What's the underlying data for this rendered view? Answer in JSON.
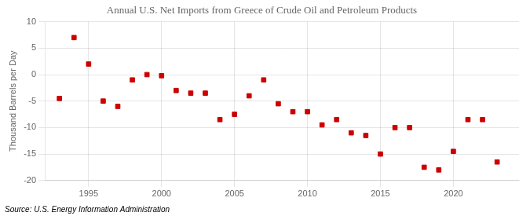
{
  "chart_data": {
    "type": "scatter",
    "title": "Annual U.S. Net Imports from Greece of Crude Oil and Petroleum Products",
    "ylabel": "Thousand Barrels per Day",
    "annotations": [
      "Source: U.S. Energy Information Administration"
    ],
    "x": [
      1993,
      1994,
      1995,
      1996,
      1997,
      1998,
      1999,
      2000,
      2001,
      2002,
      2003,
      2004,
      2005,
      2006,
      2007,
      2008,
      2009,
      2010,
      2011,
      2012,
      2013,
      2014,
      2015,
      2016,
      2017,
      2018,
      2019,
      2020,
      2021,
      2022,
      2023
    ],
    "values": [
      -4.5,
      7.0,
      2.0,
      -5.0,
      -6.0,
      -1.0,
      0.0,
      -0.2,
      -3.0,
      -3.5,
      -3.5,
      -8.5,
      -7.5,
      -4.0,
      -1.0,
      -5.5,
      -7.0,
      -7.0,
      -9.5,
      -8.5,
      -11.0,
      -11.5,
      -15.0,
      -10.0,
      -10.0,
      -17.5,
      -18.0,
      -14.5,
      -8.5,
      -8.5,
      -16.5
    ],
    "xlim": [
      1992,
      2024.5
    ],
    "xticks": [
      1995,
      2000,
      2005,
      2010,
      2015,
      2020
    ],
    "ylim": [
      -20,
      10
    ],
    "yticks": [
      -20,
      -15,
      -10,
      -5,
      0,
      5,
      10
    ],
    "color": "#cc0000",
    "marker": "square",
    "grid": true
  }
}
